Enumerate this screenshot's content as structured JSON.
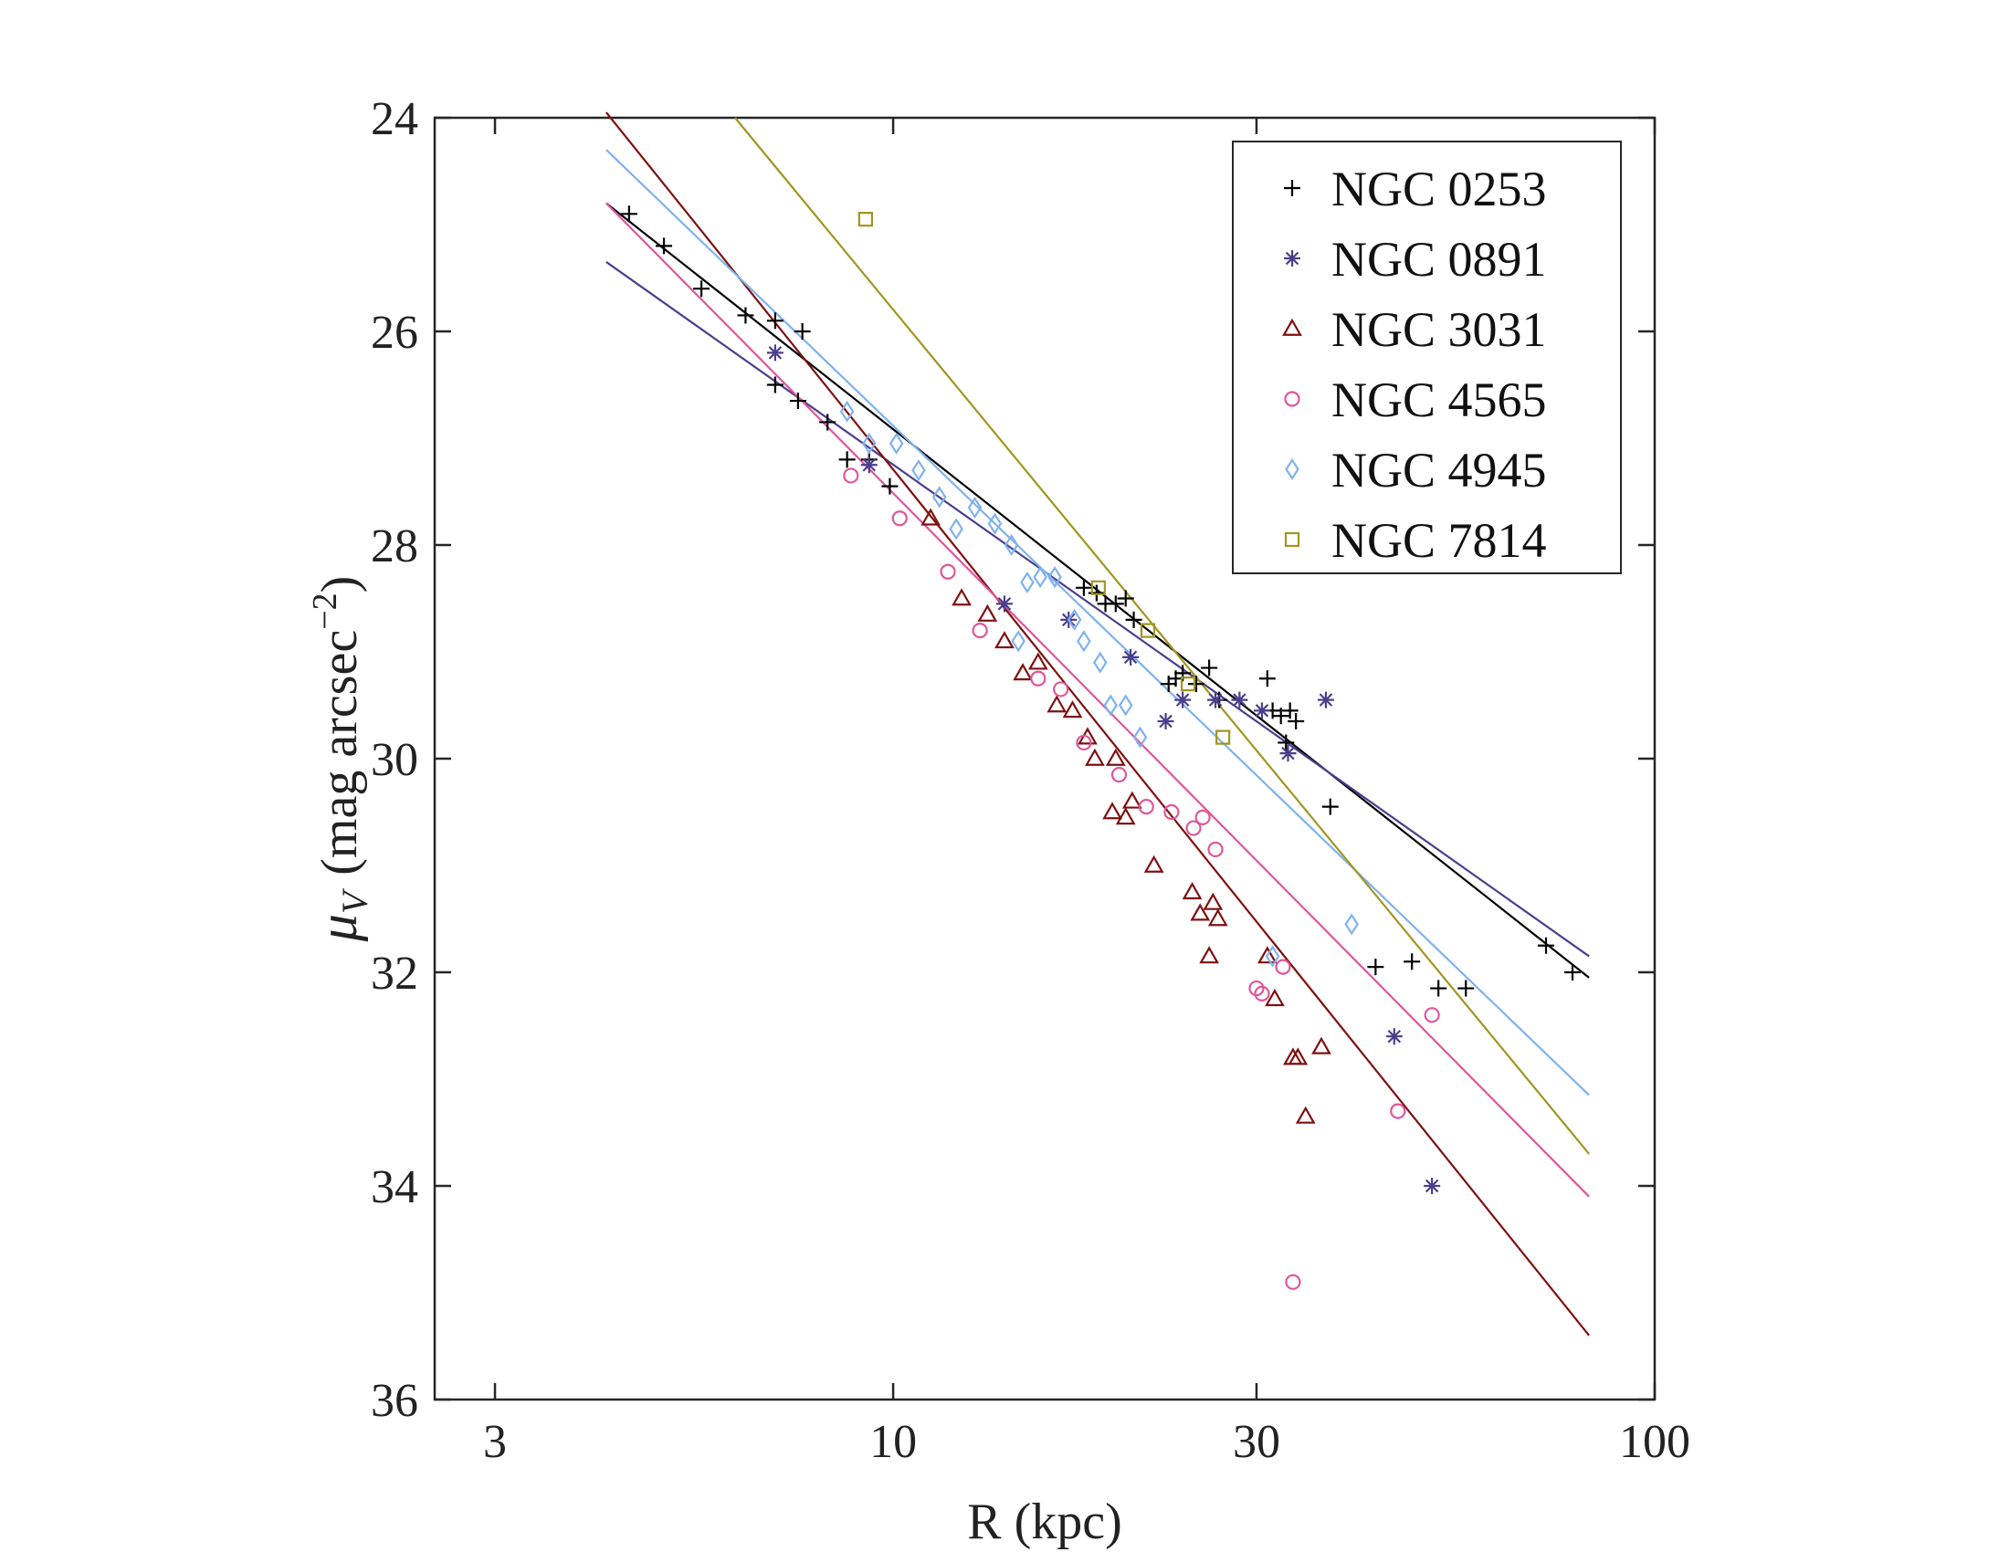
{
  "chart_data": {
    "type": "scatter",
    "title": "",
    "xlabel": "R (kpc)",
    "ylabel_parts": {
      "symbol": "μ",
      "subscript": "V",
      "unit": "(mag arcsec",
      "exponent": "−2",
      "close": ")"
    },
    "xscale": "log",
    "xlim": [
      2.5,
      100
    ],
    "ylim": [
      24,
      36
    ],
    "y_inverted": true,
    "grid": false,
    "legend_position": "top-right",
    "xticks": [
      {
        "value": 3,
        "label": "3"
      },
      {
        "value": 10,
        "label": "10"
      },
      {
        "value": 30,
        "label": "30"
      },
      {
        "value": 100,
        "label": "100"
      }
    ],
    "yticks": [
      {
        "value": 24,
        "label": "24"
      },
      {
        "value": 26,
        "label": "26"
      },
      {
        "value": 28,
        "label": "28"
      },
      {
        "value": 30,
        "label": "30"
      },
      {
        "value": 32,
        "label": "32"
      },
      {
        "value": 34,
        "label": "34"
      },
      {
        "value": 36,
        "label": "36"
      }
    ],
    "series": [
      {
        "name": "NGC 0253",
        "marker": "plus",
        "color": "#000000",
        "fit": {
          "x": [
            4.2,
            82
          ],
          "y": [
            24.8,
            32.05
          ]
        },
        "points": [
          [
            4.5,
            24.9
          ],
          [
            5.0,
            25.2
          ],
          [
            5.6,
            25.6
          ],
          [
            6.4,
            25.85
          ],
          [
            7.0,
            25.9
          ],
          [
            7.6,
            26.0
          ],
          [
            7.0,
            26.5
          ],
          [
            7.5,
            26.65
          ],
          [
            8.2,
            26.85
          ],
          [
            8.7,
            27.2
          ],
          [
            9.3,
            27.2
          ],
          [
            9.9,
            27.45
          ],
          [
            17.8,
            28.4
          ],
          [
            18.5,
            28.45
          ],
          [
            19.0,
            28.55
          ],
          [
            19.6,
            28.55
          ],
          [
            20.2,
            28.5
          ],
          [
            20.7,
            28.7
          ],
          [
            23.0,
            29.3
          ],
          [
            23.5,
            29.25
          ],
          [
            24.0,
            29.2
          ],
          [
            25.0,
            29.3
          ],
          [
            26.0,
            29.15
          ],
          [
            26.8,
            29.45
          ],
          [
            31.0,
            29.25
          ],
          [
            31.5,
            29.55
          ],
          [
            32.3,
            29.6
          ],
          [
            33.2,
            29.55
          ],
          [
            33.8,
            29.65
          ],
          [
            32.8,
            29.85
          ],
          [
            37.5,
            30.45
          ],
          [
            43.0,
            31.95
          ],
          [
            48.0,
            31.9
          ],
          [
            52.0,
            32.15
          ],
          [
            56.5,
            32.15
          ],
          [
            72.0,
            31.75
          ],
          [
            78.0,
            32.0
          ]
        ]
      },
      {
        "name": "NGC 0891",
        "marker": "asterisk",
        "color": "#4B3F8C",
        "fit": {
          "x": [
            4.2,
            82
          ],
          "y": [
            25.35,
            31.85
          ]
        },
        "points": [
          [
            7.0,
            26.2
          ],
          [
            9.3,
            27.25
          ],
          [
            14.0,
            28.55
          ],
          [
            17.0,
            28.7
          ],
          [
            20.5,
            29.05
          ],
          [
            22.8,
            29.65
          ],
          [
            24.0,
            29.45
          ],
          [
            26.5,
            29.45
          ],
          [
            28.5,
            29.45
          ],
          [
            30.5,
            29.55
          ],
          [
            33.0,
            29.95
          ],
          [
            37.0,
            29.45
          ],
          [
            45.5,
            32.6
          ],
          [
            51.0,
            34.0
          ]
        ]
      },
      {
        "name": "NGC 3031",
        "marker": "triangle",
        "color": "#7F1010",
        "fit": {
          "x": [
            4.2,
            82
          ],
          "y": [
            23.95,
            35.4
          ]
        },
        "points": [
          [
            11.2,
            27.75
          ],
          [
            12.3,
            28.5
          ],
          [
            13.3,
            28.65
          ],
          [
            14.0,
            28.9
          ],
          [
            14.8,
            29.2
          ],
          [
            15.5,
            29.1
          ],
          [
            16.4,
            29.5
          ],
          [
            17.2,
            29.55
          ],
          [
            18.0,
            29.8
          ],
          [
            18.4,
            30.0
          ],
          [
            19.6,
            30.0
          ],
          [
            20.6,
            30.4
          ],
          [
            19.4,
            30.5
          ],
          [
            20.2,
            30.55
          ],
          [
            22.0,
            31.0
          ],
          [
            24.7,
            31.25
          ],
          [
            25.3,
            31.45
          ],
          [
            26.3,
            31.35
          ],
          [
            26.7,
            31.5
          ],
          [
            26.0,
            31.85
          ],
          [
            31.0,
            31.85
          ],
          [
            31.7,
            32.25
          ],
          [
            33.5,
            32.8
          ],
          [
            34.0,
            32.8
          ],
          [
            34.8,
            33.35
          ],
          [
            36.5,
            32.7
          ]
        ]
      },
      {
        "name": "NGC 4565",
        "marker": "circle",
        "color": "#E0569A",
        "fit": {
          "x": [
            4.2,
            82
          ],
          "y": [
            24.8,
            34.1
          ]
        },
        "points": [
          [
            8.8,
            27.35
          ],
          [
            10.2,
            27.75
          ],
          [
            11.8,
            28.25
          ],
          [
            13.0,
            28.8
          ],
          [
            15.5,
            29.25
          ],
          [
            16.6,
            29.35
          ],
          [
            17.8,
            29.85
          ],
          [
            19.8,
            30.15
          ],
          [
            21.5,
            30.45
          ],
          [
            23.2,
            30.5
          ],
          [
            24.8,
            30.65
          ],
          [
            25.5,
            30.55
          ],
          [
            26.5,
            30.85
          ],
          [
            30.0,
            32.15
          ],
          [
            30.5,
            32.2
          ],
          [
            32.5,
            31.95
          ],
          [
            33.5,
            34.9
          ],
          [
            46.0,
            33.3
          ],
          [
            51.0,
            32.4
          ]
        ]
      },
      {
        "name": "NGC 4945",
        "marker": "diamond",
        "color": "#7FB2EE",
        "fit": {
          "x": [
            4.2,
            82
          ],
          "y": [
            24.3,
            33.15
          ]
        },
        "points": [
          [
            8.7,
            26.75
          ],
          [
            9.3,
            27.05
          ],
          [
            10.1,
            27.05
          ],
          [
            10.8,
            27.3
          ],
          [
            11.5,
            27.55
          ],
          [
            12.1,
            27.85
          ],
          [
            12.8,
            27.65
          ],
          [
            13.6,
            27.8
          ],
          [
            14.3,
            28.0
          ],
          [
            15.0,
            28.35
          ],
          [
            15.6,
            28.3
          ],
          [
            16.3,
            28.3
          ],
          [
            14.6,
            28.9
          ],
          [
            17.3,
            28.7
          ],
          [
            17.8,
            28.9
          ],
          [
            18.7,
            29.1
          ],
          [
            19.3,
            29.5
          ],
          [
            20.2,
            29.5
          ],
          [
            21.1,
            29.8
          ],
          [
            31.5,
            31.85
          ],
          [
            40.0,
            31.55
          ]
        ]
      },
      {
        "name": "NGC 7814",
        "marker": "square",
        "color": "#A19620",
        "fit": {
          "x": [
            6.2,
            82
          ],
          "y": [
            24.0,
            33.7
          ]
        },
        "points": [
          [
            9.2,
            24.95
          ],
          [
            18.6,
            28.4
          ],
          [
            21.6,
            28.8
          ],
          [
            24.4,
            29.3
          ],
          [
            27.1,
            29.8
          ]
        ]
      }
    ]
  }
}
